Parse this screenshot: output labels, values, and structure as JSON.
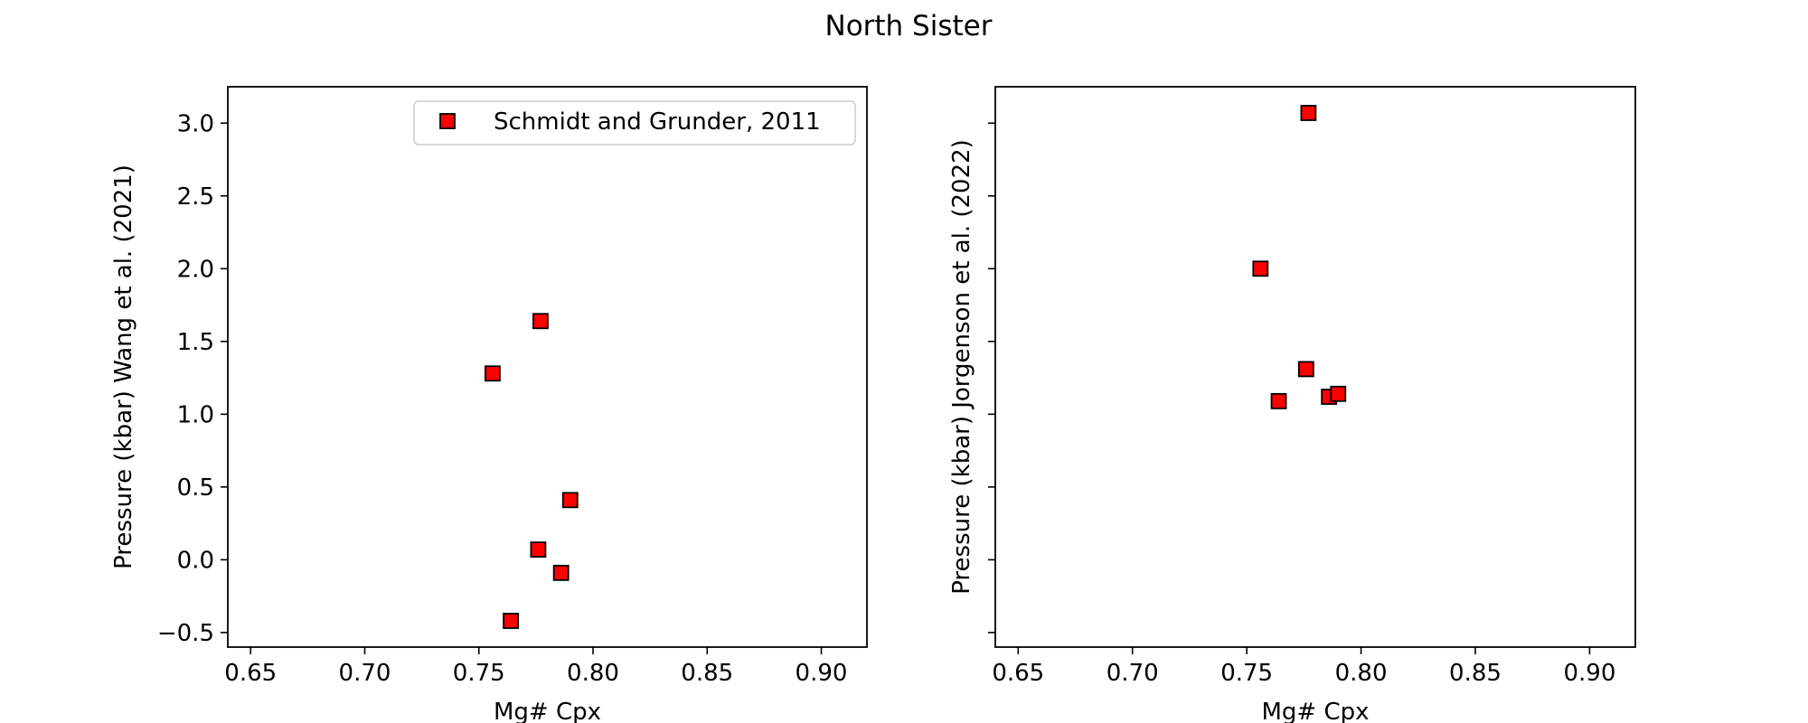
{
  "figure": {
    "title": "North Sister"
  },
  "colors": {
    "marker_fill": "#ff0000",
    "marker_edge": "#000000",
    "axes": "#000000",
    "background": "#ffffff"
  },
  "chart_data": [
    {
      "type": "scatter",
      "title": "",
      "xlabel": "Mg# Cpx",
      "ylabel": "Pressure (kbar) Wang et al. (2021)",
      "xlim": [
        0.64,
        0.92
      ],
      "ylim": [
        -0.6,
        3.25
      ],
      "xticks": [
        0.65,
        0.7,
        0.75,
        0.8,
        0.85,
        0.9
      ],
      "xtick_labels": [
        "0.65",
        "0.70",
        "0.75",
        "0.80",
        "0.85",
        "0.90"
      ],
      "yticks": [
        -0.5,
        0.0,
        0.5,
        1.0,
        1.5,
        2.0,
        2.5,
        3.0
      ],
      "ytick_labels": [
        "−0.5",
        "0.0",
        "0.5",
        "1.0",
        "1.5",
        "2.0",
        "2.5",
        "3.0"
      ],
      "legend": {
        "visible": true,
        "location": "upper right",
        "entries": [
          "Schmidt and Grunder, 2011"
        ]
      },
      "grid": false,
      "marker": "square",
      "series": [
        {
          "name": "Schmidt and Grunder, 2011",
          "x": [
            0.777,
            0.756,
            0.79,
            0.776,
            0.786,
            0.764
          ],
          "y": [
            1.64,
            1.28,
            0.41,
            0.07,
            -0.09,
            -0.42
          ]
        }
      ]
    },
    {
      "type": "scatter",
      "title": "",
      "xlabel": "Mg# Cpx",
      "ylabel": "Pressure (kbar) Jorgenson et al. (2022)",
      "xlim": [
        0.64,
        0.92
      ],
      "ylim": [
        -0.6,
        3.25
      ],
      "xticks": [
        0.65,
        0.7,
        0.75,
        0.8,
        0.85,
        0.9
      ],
      "xtick_labels": [
        "0.65",
        "0.70",
        "0.75",
        "0.80",
        "0.85",
        "0.90"
      ],
      "yticks": [
        -0.5,
        0.0,
        0.5,
        1.0,
        1.5,
        2.0,
        2.5,
        3.0
      ],
      "ytick_labels": [
        "",
        "",
        "",
        "",
        "",
        "",
        "",
        ""
      ],
      "legend": {
        "visible": false
      },
      "grid": false,
      "marker": "square",
      "series": [
        {
          "name": "Schmidt and Grunder, 2011",
          "x": [
            0.777,
            0.756,
            0.776,
            0.764,
            0.786,
            0.79
          ],
          "y": [
            3.07,
            2.0,
            1.31,
            1.09,
            1.12,
            1.14
          ]
        }
      ]
    }
  ]
}
